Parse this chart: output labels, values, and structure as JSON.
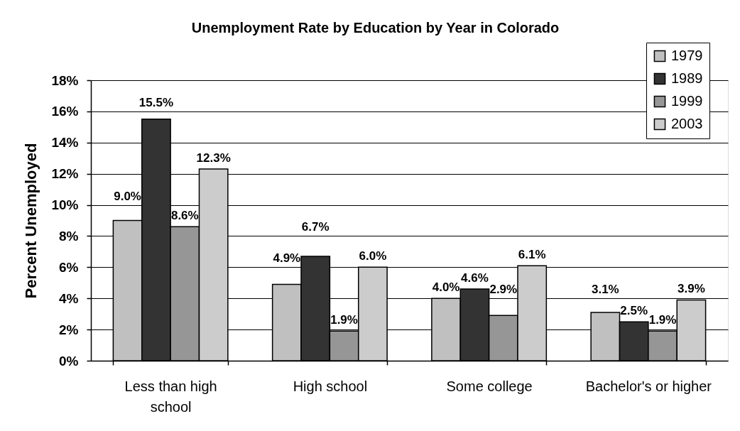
{
  "chart_data": {
    "type": "bar",
    "title": "Unemployment Rate by Education by Year in Colorado",
    "ylabel": "Percent Unemployed",
    "categories": [
      "Less than high school",
      "High school",
      "Some college",
      "Bachelor's or higher"
    ],
    "series": [
      {
        "name": "1979",
        "color": "#c0c0c0",
        "values": [
          9.0,
          4.9,
          4.0,
          3.1
        ],
        "value_labels": [
          "9.0%",
          "4.9%",
          "4.0%",
          "3.1%"
        ]
      },
      {
        "name": "1989",
        "color": "#333333",
        "values": [
          15.5,
          6.7,
          4.6,
          2.5
        ],
        "value_labels": [
          "15.5%",
          "6.7%",
          "4.6%",
          "2.5%"
        ]
      },
      {
        "name": "1999",
        "color": "#969696",
        "values": [
          8.6,
          1.9,
          2.9,
          1.9
        ],
        "value_labels": [
          "8.6%",
          "1.9%",
          "2.9%",
          "1.9%"
        ]
      },
      {
        "name": "2003",
        "color": "#cccccc",
        "values": [
          12.3,
          6.0,
          6.1,
          3.9
        ],
        "value_labels": [
          "12.3%",
          "6.0%",
          "6.1%",
          "3.9%"
        ]
      }
    ],
    "ylim": [
      0,
      18
    ],
    "yticks": [
      {
        "value": 0,
        "label": "0%"
      },
      {
        "value": 2,
        "label": "2%"
      },
      {
        "value": 4,
        "label": "4%"
      },
      {
        "value": 6,
        "label": "6%"
      },
      {
        "value": 8,
        "label": "8%"
      },
      {
        "value": 10,
        "label": "10%"
      },
      {
        "value": 12,
        "label": "12%"
      },
      {
        "value": 14,
        "label": "14%"
      },
      {
        "value": 16,
        "label": "16%"
      },
      {
        "value": 18,
        "label": "18%"
      }
    ],
    "grid": "y",
    "legend": "top right"
  }
}
